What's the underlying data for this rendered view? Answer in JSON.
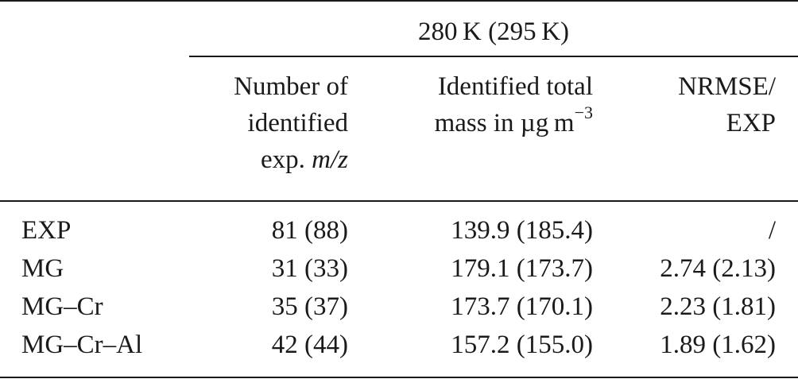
{
  "table": {
    "group_header": "280 K (295 K)",
    "columns": {
      "num": {
        "line1": "Number of",
        "line2": "identified",
        "line3_prefix": "exp. ",
        "line3_italic": "m/z"
      },
      "mass": {
        "line1": "Identified total",
        "line2_prefix": "mass in µg m",
        "line2_sup": "−3"
      },
      "nrmse": {
        "line1": "NRMSE/",
        "line2": "EXP"
      }
    },
    "rows": [
      {
        "label": "EXP",
        "num": "81 (88)",
        "mass": "139.9 (185.4)",
        "nrmse": "/"
      },
      {
        "label": "MG",
        "num": "31 (33)",
        "mass": "179.1 (173.7)",
        "nrmse": "2.74 (2.13)"
      },
      {
        "label": "MG–Cr",
        "num": "35 (37)",
        "mass": "173.7 (170.1)",
        "nrmse": "2.23 (1.81)"
      },
      {
        "label": "MG–Cr–Al",
        "num": "42 (44)",
        "mass": "157.2 (155.0)",
        "nrmse": "1.89 (1.62)"
      }
    ]
  }
}
